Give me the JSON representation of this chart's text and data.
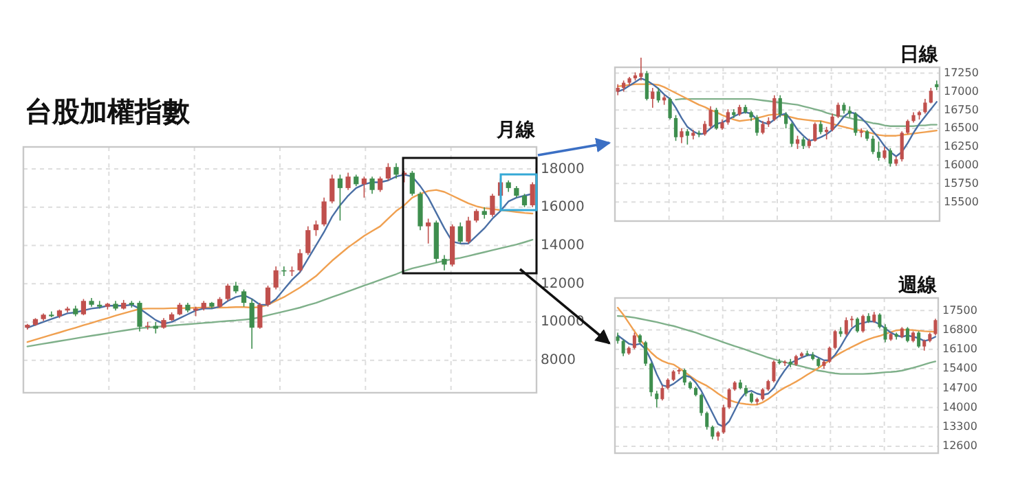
{
  "chart_data": [
    {
      "type": "candlestick",
      "title": "台股加權指數",
      "subtitle": "月線",
      "grid": true,
      "ylim": [
        6300,
        19150
      ],
      "yticks": [
        8000,
        10000,
        12000,
        14000,
        16000,
        18000
      ],
      "categories": [
        null,
        null,
        null,
        null,
        null,
        null,
        null,
        null,
        null,
        null,
        null,
        null,
        null,
        null,
        null,
        null,
        null,
        null,
        null,
        null,
        null,
        null,
        null,
        null,
        null,
        null,
        null,
        null,
        null,
        null,
        null,
        null,
        null,
        null,
        null,
        null,
        null,
        null,
        null,
        null,
        null,
        null,
        null,
        null,
        null,
        null,
        null,
        null,
        null,
        null,
        null,
        null,
        null,
        null,
        null,
        null,
        null,
        null,
        null,
        null,
        null,
        null,
        null,
        null
      ],
      "series": [
        {
          "type": "line",
          "color": "#7fb08a",
          "values": [
            8720,
            8790,
            8860,
            8930,
            9000,
            9070,
            9140,
            9210,
            9280,
            9340,
            9410,
            9480,
            9550,
            9610,
            9680,
            9710,
            9740,
            9780,
            9810,
            9850,
            9880,
            9910,
            9950,
            9980,
            10020,
            10050,
            10080,
            10120,
            10160,
            10250,
            10350,
            10450,
            10550,
            10650,
            10750,
            10880,
            11000,
            11150,
            11300,
            11450,
            11600,
            11750,
            11900,
            12050,
            12200,
            12350,
            12500,
            12670,
            12800,
            12900,
            13000,
            13100,
            13200,
            13280,
            13350,
            13450,
            13550,
            13650,
            13750,
            13850,
            13950,
            14050,
            14170,
            14300
          ]
        },
        {
          "type": "line",
          "color": "#f0a050",
          "values": [
            8950,
            9080,
            9200,
            9330,
            9450,
            9580,
            9700,
            9830,
            9950,
            10080,
            10200,
            10330,
            10450,
            10570,
            10680,
            10700,
            10700,
            10700,
            10720,
            10720,
            10730,
            10740,
            10750,
            10750,
            10750,
            10760,
            10780,
            10780,
            10750,
            10780,
            10900,
            11100,
            11300,
            11550,
            11800,
            12100,
            12400,
            12800,
            13200,
            13550,
            13900,
            14200,
            14500,
            14750,
            15000,
            15400,
            15800,
            16100,
            16500,
            16700,
            16850,
            16900,
            16800,
            16600,
            16400,
            16200,
            16050,
            15950,
            15900,
            15850,
            15800,
            15750,
            15700,
            15670
          ]
        },
        {
          "type": "line",
          "color": "#4a6fa5",
          "values": [
            9700,
            9850,
            10000,
            10150,
            10300,
            10450,
            10500,
            10600,
            10700,
            10750,
            10850,
            10850,
            10850,
            10900,
            10700,
            10400,
            10100,
            9900,
            10000,
            10200,
            10400,
            10600,
            10700,
            10700,
            10800,
            11100,
            11300,
            11400,
            11200,
            10900,
            10900,
            11200,
            11700,
            12200,
            12600,
            13300,
            14000,
            14700,
            15500,
            16100,
            16600,
            17000,
            17200,
            17300,
            17300,
            17400,
            17600,
            17700,
            17600,
            17100,
            16500,
            15700,
            14900,
            14200,
            14100,
            14100,
            14500,
            14900,
            15400,
            15800,
            16300,
            16500,
            16600,
            16700
          ]
        },
        {
          "type": "candlestick",
          "ohlc": [
            [
              9700,
              9900,
              9600,
              9850
            ],
            [
              9850,
              10200,
              9800,
              10150
            ],
            [
              10150,
              10450,
              10050,
              10380
            ],
            [
              10380,
              10550,
              10250,
              10300
            ],
            [
              10300,
              10650,
              10200,
              10600
            ],
            [
              10600,
              10800,
              10500,
              10700
            ],
            [
              10700,
              10850,
              10300,
              10400
            ],
            [
              10400,
              11200,
              10350,
              11100
            ],
            [
              11100,
              11250,
              10800,
              10900
            ],
            [
              10900,
              11100,
              10700,
              10800
            ],
            [
              10800,
              11000,
              10650,
              10950
            ],
            [
              10950,
              11100,
              10600,
              10700
            ],
            [
              10700,
              11150,
              10650,
              11000
            ],
            [
              11000,
              11100,
              10750,
              10900
            ],
            [
              11000,
              11100,
              9500,
              9750
            ],
            [
              9750,
              10000,
              9600,
              9800
            ],
            [
              9800,
              10000,
              9400,
              9650
            ],
            [
              9700,
              10200,
              9650,
              10100
            ],
            [
              10100,
              10500,
              10050,
              10400
            ],
            [
              10400,
              11000,
              10350,
              10900
            ],
            [
              10900,
              11000,
              10500,
              10600
            ],
            [
              10600,
              10800,
              10300,
              10700
            ],
            [
              10700,
              11100,
              10600,
              11000
            ],
            [
              11000,
              11050,
              10700,
              10800
            ],
            [
              10800,
              11300,
              10750,
              11200
            ],
            [
              11200,
              12000,
              11100,
              11900
            ],
            [
              11900,
              12100,
              11500,
              11600
            ],
            [
              11600,
              11700,
              10800,
              11000
            ],
            [
              11000,
              11200,
              8600,
              9700
            ],
            [
              9700,
              11000,
              9650,
              10900
            ],
            [
              10900,
              11900,
              10800,
              11800
            ],
            [
              11800,
              12900,
              11700,
              12700
            ],
            [
              12700,
              12900,
              12400,
              12650
            ],
            [
              12650,
              12900,
              12400,
              12700
            ],
            [
              12700,
              13800,
              12600,
              13600
            ],
            [
              13600,
              15000,
              13500,
              14800
            ],
            [
              14800,
              15300,
              14500,
              15100
            ],
            [
              15100,
              16500,
              15000,
              16300
            ],
            [
              16300,
              17700,
              16200,
              17500
            ],
            [
              17500,
              17700,
              15300,
              17000
            ],
            [
              17000,
              17800,
              16900,
              17600
            ],
            [
              17600,
              17700,
              17100,
              17200
            ],
            [
              17200,
              17600,
              16500,
              17500
            ],
            [
              17500,
              17600,
              16700,
              16900
            ],
            [
              16900,
              17600,
              16800,
              17500
            ],
            [
              17500,
              18300,
              17400,
              18100
            ],
            [
              18100,
              18300,
              17500,
              17700
            ],
            [
              17700,
              17900,
              17300,
              17800
            ],
            [
              17800,
              17900,
              16600,
              16700
            ],
            [
              16700,
              16800,
              14800,
              15000
            ],
            [
              15000,
              15400,
              14100,
              15200
            ],
            [
              15200,
              15300,
              13100,
              13300
            ],
            [
              13300,
              13500,
              12700,
              13000
            ],
            [
              13000,
              15100,
              12900,
              15000
            ],
            [
              15000,
              15200,
              14100,
              14200
            ],
            [
              14200,
              15500,
              14100,
              15300
            ],
            [
              15300,
              15900,
              15200,
              15800
            ],
            [
              15800,
              16000,
              15400,
              15600
            ],
            [
              15600,
              16700,
              15500,
              16600
            ],
            [
              16600,
              17500,
              16500,
              17300
            ],
            [
              17300,
              17400,
              16800,
              17000
            ],
            [
              17000,
              17100,
              16500,
              16600
            ],
            [
              16600,
              16700,
              16000,
              16100
            ],
            [
              16100,
              17300,
              16000,
              17200
            ]
          ],
          "colors": [
            "#c0504d",
            "#c0504d",
            "#c0504d",
            "#3e8e4e",
            "#c0504d",
            "#c0504d",
            "#3e8e4e",
            "#c0504d",
            "#3e8e4e",
            "#3e8e4e",
            "#c0504d",
            "#3e8e4e",
            "#c0504d",
            "#3e8e4e",
            "#3e8e4e",
            "#c0504d",
            "#3e8e4e",
            "#c0504d",
            "#c0504d",
            "#c0504d",
            "#3e8e4e",
            "#c0504d",
            "#c0504d",
            "#3e8e4e",
            "#c0504d",
            "#c0504d",
            "#3e8e4e",
            "#3e8e4e",
            "#3e8e4e",
            "#c0504d",
            "#c0504d",
            "#c0504d",
            "#3e8e4e",
            "#c0504d",
            "#c0504d",
            "#c0504d",
            "#c0504d",
            "#c0504d",
            "#c0504d",
            "#3e8e4e",
            "#c0504d",
            "#3e8e4e",
            "#c0504d",
            "#3e8e4e",
            "#c0504d",
            "#c0504d",
            "#3e8e4e",
            "#c0504d",
            "#3e8e4e",
            "#3e8e4e",
            "#c0504d",
            "#3e8e4e",
            "#3e8e4e",
            "#c0504d",
            "#3e8e4e",
            "#c0504d",
            "#c0504d",
            "#3e8e4e",
            "#c0504d",
            "#c0504d",
            "#3e8e4e",
            "#3e8e4e",
            "#3e8e4e",
            "#c0504d"
          ]
        }
      ]
    },
    {
      "type": "candlestick",
      "title": "日線",
      "grid": true,
      "ylim": [
        15240,
        17330
      ],
      "yticks": [
        15500,
        15750,
        16000,
        16250,
        16500,
        16750,
        17000,
        17250
      ],
      "categories": [
        null,
        null,
        null,
        null,
        null,
        null,
        null,
        null,
        null,
        null,
        null,
        null,
        null,
        null,
        null,
        null,
        null,
        null,
        null,
        null,
        null,
        null,
        null,
        null,
        null,
        null,
        null,
        null,
        null,
        null,
        null,
        null,
        null,
        null,
        null,
        null,
        null,
        null,
        null,
        null,
        null,
        null,
        null,
        null,
        null,
        null,
        null,
        null,
        null,
        null,
        null,
        null,
        null,
        null,
        null,
        null
      ],
      "series": [
        {
          "type": "line",
          "color": "#7fb08a",
          "values": [
            null,
            null,
            null,
            null,
            null,
            null,
            null,
            null,
            null,
            null,
            16890,
            16900,
            16900,
            16900,
            16900,
            16900,
            16900,
            16900,
            16900,
            16900,
            16900,
            16900,
            16900,
            16900,
            16890,
            16880,
            16870,
            16860,
            16850,
            16840,
            16830,
            16820,
            16800,
            16780,
            16760,
            16740,
            16710,
            16690,
            16670,
            16660,
            16640,
            16620,
            16610,
            16590,
            16570,
            16560,
            16540,
            16530,
            16530,
            16530,
            16530,
            16530,
            16540,
            16540,
            16550,
            16550
          ]
        },
        {
          "type": "line",
          "color": "#f0a050",
          "values": [
            17070,
            17080,
            17090,
            17100,
            17100,
            17100,
            17100,
            17090,
            17060,
            17020,
            16980,
            16940,
            16900,
            16860,
            16820,
            16790,
            16750,
            16720,
            16680,
            16650,
            16620,
            16600,
            16610,
            16620,
            16640,
            16660,
            16680,
            16690,
            16690,
            16670,
            16650,
            16630,
            16620,
            16610,
            16600,
            16600,
            16580,
            16560,
            16540,
            16520,
            16500,
            16480,
            16470,
            16450,
            16430,
            16410,
            16400,
            16400,
            16400,
            16410,
            16420,
            16430,
            16440,
            16450,
            16460,
            16470
          ]
        },
        {
          "type": "line",
          "color": "#4a6fa5",
          "values": [
            17000,
            17030,
            17080,
            17130,
            17180,
            17150,
            17100,
            17040,
            16960,
            16900,
            16780,
            16640,
            16520,
            16460,
            16420,
            16430,
            16500,
            16560,
            16580,
            16620,
            16660,
            16700,
            16720,
            16700,
            16620,
            16580,
            16560,
            16620,
            16680,
            16700,
            16600,
            16480,
            16400,
            16330,
            16350,
            16380,
            16420,
            16480,
            16560,
            16660,
            16720,
            16700,
            16640,
            16560,
            16460,
            16370,
            16260,
            16180,
            16120,
            16180,
            16300,
            16440,
            16560,
            16660,
            16760,
            16860
          ]
        },
        {
          "type": "candlestick",
          "ohlc": [
            [
              17000,
              17100,
              16950,
              17050
            ],
            [
              17050,
              17150,
              17000,
              17120
            ],
            [
              17120,
              17200,
              17080,
              17180
            ],
            [
              17180,
              17260,
              17150,
              17220
            ],
            [
              17200,
              17460,
              17150,
              17250
            ],
            [
              17250,
              17280,
              16880,
              16900
            ],
            [
              16900,
              17050,
              16780,
              17000
            ],
            [
              17000,
              17050,
              16850,
              16880
            ],
            [
              16880,
              16950,
              16820,
              16920
            ],
            [
              16900,
              16920,
              16620,
              16640
            ],
            [
              16640,
              16680,
              16330,
              16380
            ],
            [
              16380,
              16500,
              16300,
              16460
            ],
            [
              16460,
              16490,
              16280,
              16400
            ],
            [
              16400,
              16480,
              16350,
              16440
            ],
            [
              16440,
              16470,
              16380,
              16420
            ],
            [
              16420,
              16600,
              16400,
              16560
            ],
            [
              16530,
              16800,
              16500,
              16750
            ],
            [
              16750,
              16780,
              16480,
              16500
            ],
            [
              16500,
              16620,
              16480,
              16580
            ],
            [
              16580,
              16760,
              16550,
              16720
            ],
            [
              16720,
              16760,
              16640,
              16680
            ],
            [
              16690,
              16820,
              16670,
              16790
            ],
            [
              16790,
              16820,
              16700,
              16720
            ],
            [
              16720,
              16740,
              16600,
              16650
            ],
            [
              16650,
              16680,
              16400,
              16440
            ],
            [
              16440,
              16600,
              16420,
              16560
            ],
            [
              16560,
              16650,
              16520,
              16600
            ],
            [
              16620,
              16950,
              16600,
              16910
            ],
            [
              16910,
              16950,
              16650,
              16690
            ],
            [
              16690,
              16720,
              16500,
              16560
            ],
            [
              16560,
              16580,
              16250,
              16290
            ],
            [
              16290,
              16400,
              16220,
              16350
            ],
            [
              16350,
              16380,
              16220,
              16260
            ],
            [
              16260,
              16360,
              16230,
              16330
            ],
            [
              16330,
              16580,
              16320,
              16560
            ],
            [
              16560,
              16600,
              16420,
              16450
            ],
            [
              16450,
              16520,
              16350,
              16480
            ],
            [
              16480,
              16700,
              16460,
              16660
            ],
            [
              16660,
              16850,
              16640,
              16820
            ],
            [
              16820,
              16850,
              16700,
              16740
            ],
            [
              16740,
              16800,
              16650,
              16700
            ],
            [
              16700,
              16720,
              16400,
              16440
            ],
            [
              16440,
              16500,
              16380,
              16460
            ],
            [
              16460,
              16480,
              16330,
              16360
            ],
            [
              16360,
              16400,
              16150,
              16180
            ],
            [
              16180,
              16320,
              16060,
              16100
            ],
            [
              16100,
              16250,
              16080,
              16200
            ],
            [
              16200,
              16230,
              15980,
              16020
            ],
            [
              16020,
              16120,
              15990,
              16080
            ],
            [
              16080,
              16460,
              16050,
              16440
            ],
            [
              16440,
              16620,
              16420,
              16600
            ],
            [
              16600,
              16720,
              16580,
              16680
            ],
            [
              16680,
              16740,
              16620,
              16720
            ],
            [
              16720,
              16900,
              16700,
              16850
            ],
            [
              16850,
              17050,
              16840,
              17010
            ],
            [
              17100,
              17150,
              17020,
              17060
            ]
          ],
          "colors": [
            "#c0504d",
            "#c0504d",
            "#c0504d",
            "#c0504d",
            "#c0504d",
            "#3e8e4e",
            "#c0504d",
            "#3e8e4e",
            "#c0504d",
            "#3e8e4e",
            "#3e8e4e",
            "#c0504d",
            "#3e8e4e",
            "#c0504d",
            "#3e8e4e",
            "#c0504d",
            "#c0504d",
            "#3e8e4e",
            "#c0504d",
            "#c0504d",
            "#3e8e4e",
            "#c0504d",
            "#3e8e4e",
            "#3e8e4e",
            "#3e8e4e",
            "#c0504d",
            "#c0504d",
            "#c0504d",
            "#3e8e4e",
            "#3e8e4e",
            "#3e8e4e",
            "#c0504d",
            "#3e8e4e",
            "#c0504d",
            "#c0504d",
            "#3e8e4e",
            "#c0504d",
            "#c0504d",
            "#c0504d",
            "#3e8e4e",
            "#3e8e4e",
            "#3e8e4e",
            "#c0504d",
            "#3e8e4e",
            "#3e8e4e",
            "#3e8e4e",
            "#c0504d",
            "#3e8e4e",
            "#c0504d",
            "#c0504d",
            "#c0504d",
            "#c0504d",
            "#c0504d",
            "#c0504d",
            "#c0504d",
            "#3e8e4e"
          ]
        }
      ]
    },
    {
      "type": "candlestick",
      "title": "週線",
      "grid": true,
      "ylim": [
        12350,
        17950
      ],
      "yticks": [
        12600,
        13300,
        14000,
        14700,
        15400,
        16100,
        16800,
        17500
      ],
      "categories": [
        null,
        null,
        null,
        null,
        null,
        null,
        null,
        null,
        null,
        null,
        null,
        null,
        null,
        null,
        null,
        null,
        null,
        null,
        null,
        null,
        null,
        null,
        null,
        null,
        null,
        null,
        null,
        null,
        null,
        null,
        null,
        null,
        null,
        null,
        null,
        null,
        null,
        null,
        null,
        null,
        null,
        null,
        null,
        null,
        null,
        null,
        null,
        null,
        null,
        null,
        null,
        null,
        null,
        null,
        null,
        null,
        null,
        null
      ],
      "series": [
        {
          "type": "line",
          "color": "#7fb08a",
          "values": [
            17300,
            17290,
            17270,
            17240,
            17200,
            17160,
            17120,
            17080,
            17030,
            16980,
            16940,
            16880,
            16820,
            16760,
            16700,
            16630,
            16560,
            16490,
            16420,
            16350,
            16280,
            16210,
            16150,
            16080,
            16010,
            15940,
            15870,
            15800,
            15740,
            15680,
            15630,
            15580,
            15530,
            15480,
            15430,
            15380,
            15330,
            15300,
            15260,
            15230,
            15210,
            15210,
            15210,
            15210,
            15210,
            15220,
            15230,
            15250,
            15270,
            15280,
            15300,
            15330,
            15380,
            15430,
            15490,
            15550,
            15610,
            15660
          ]
        },
        {
          "type": "line",
          "color": "#f0a050",
          "values": [
            17600,
            17350,
            17050,
            16750,
            16450,
            16200,
            15980,
            15800,
            15680,
            15600,
            15550,
            15420,
            15280,
            15130,
            14990,
            14880,
            14780,
            14650,
            14500,
            14370,
            14270,
            14200,
            14150,
            14120,
            14100,
            14100,
            14180,
            14300,
            14450,
            14600,
            14720,
            14820,
            14930,
            15050,
            15180,
            15300,
            15420,
            15560,
            15700,
            15850,
            15970,
            16080,
            16180,
            16280,
            16380,
            16460,
            16530,
            16580,
            16650,
            16720,
            16780,
            16800,
            16800,
            16790,
            16770,
            16750,
            16740,
            16730
          ]
        },
        {
          "type": "line",
          "color": "#4a6fa5",
          "values": [
            16600,
            16450,
            16300,
            16250,
            16300,
            16100,
            15700,
            15200,
            14800,
            14750,
            14850,
            15000,
            15150,
            15100,
            14900,
            14600,
            14200,
            13800,
            13400,
            13300,
            13500,
            13900,
            14300,
            14550,
            14600,
            14500,
            14450,
            14500,
            14700,
            15050,
            15350,
            15600,
            15700,
            15800,
            15880,
            15900,
            15800,
            15700,
            15700,
            15900,
            16200,
            16550,
            16850,
            17000,
            17050,
            17100,
            17100,
            17000,
            16850,
            16700,
            16600,
            16550,
            16600,
            16550,
            16500,
            16400,
            16450,
            16550
          ]
        },
        {
          "type": "candlestick",
          "ohlc": [
            [
              16560,
              16700,
              16300,
              16400
            ],
            [
              16400,
              16450,
              15850,
              15950
            ],
            [
              15950,
              16200,
              15900,
              16150
            ],
            [
              16150,
              16700,
              16100,
              16600
            ],
            [
              16600,
              16650,
              16300,
              16350
            ],
            [
              16350,
              16400,
              15500,
              15580
            ],
            [
              15580,
              15620,
              14400,
              14550
            ],
            [
              14500,
              14600,
              14000,
              14300
            ],
            [
              14300,
              14800,
              14250,
              14700
            ],
            [
              14700,
              15050,
              14650,
              15000
            ],
            [
              15000,
              15350,
              14950,
              15300
            ],
            [
              15300,
              15400,
              15200,
              15350
            ],
            [
              15350,
              15400,
              14800,
              14900
            ],
            [
              14900,
              14950,
              14650,
              14700
            ],
            [
              14700,
              14750,
              14400,
              14450
            ],
            [
              14450,
              14500,
              13700,
              13800
            ],
            [
              13800,
              13850,
              13200,
              13300
            ],
            [
              13300,
              13350,
              12850,
              12950
            ],
            [
              12950,
              13150,
              12800,
              13100
            ],
            [
              13100,
              14100,
              13050,
              14000
            ],
            [
              14000,
              14700,
              13950,
              14650
            ],
            [
              14650,
              14950,
              14600,
              14900
            ],
            [
              14900,
              15000,
              14650,
              14700
            ],
            [
              14700,
              14800,
              14400,
              14500
            ],
            [
              14500,
              14550,
              14150,
              14200
            ],
            [
              14200,
              14350,
              14100,
              14300
            ],
            [
              14300,
              14700,
              14250,
              14650
            ],
            [
              14650,
              15000,
              14600,
              14950
            ],
            [
              14950,
              15700,
              14900,
              15650
            ],
            [
              15650,
              15750,
              15550,
              15600
            ],
            [
              15600,
              15700,
              15500,
              15650
            ],
            [
              15650,
              15750,
              15450,
              15550
            ],
            [
              15550,
              15900,
              15500,
              15850
            ],
            [
              15850,
              16000,
              15800,
              15950
            ],
            [
              15950,
              16050,
              15850,
              15900
            ],
            [
              15900,
              16000,
              15700,
              15750
            ],
            [
              15750,
              15800,
              15450,
              15500
            ],
            [
              15500,
              15700,
              15400,
              15650
            ],
            [
              15650,
              16200,
              15600,
              16150
            ],
            [
              16150,
              16800,
              16100,
              16750
            ],
            [
              16750,
              16900,
              16550,
              16650
            ],
            [
              16650,
              17250,
              16600,
              17150
            ],
            [
              17150,
              17300,
              16900,
              17200
            ],
            [
              17200,
              17250,
              16700,
              16750
            ],
            [
              16750,
              17350,
              16700,
              17300
            ],
            [
              17300,
              17400,
              17050,
              17100
            ],
            [
              17100,
              17450,
              17050,
              17350
            ],
            [
              17350,
              17400,
              16850,
              16900
            ],
            [
              16900,
              17000,
              16350,
              16450
            ],
            [
              16450,
              16700,
              16400,
              16650
            ],
            [
              16650,
              16700,
              16450,
              16550
            ],
            [
              16550,
              16900,
              16500,
              16850
            ],
            [
              16850,
              16900,
              16350,
              16400
            ],
            [
              16400,
              16750,
              16350,
              16700
            ],
            [
              16700,
              16750,
              16150,
              16200
            ],
            [
              16200,
              16450,
              16050,
              16400
            ],
            [
              16400,
              16700,
              16350,
              16650
            ],
            [
              16650,
              17200,
              16600,
              17150
            ]
          ],
          "colors": [
            "#3e8e4e",
            "#3e8e4e",
            "#c0504d",
            "#c0504d",
            "#3e8e4e",
            "#3e8e4e",
            "#3e8e4e",
            "#3e8e4e",
            "#c0504d",
            "#c0504d",
            "#c0504d",
            "#c0504d",
            "#3e8e4e",
            "#3e8e4e",
            "#3e8e4e",
            "#3e8e4e",
            "#3e8e4e",
            "#3e8e4e",
            "#c0504d",
            "#c0504d",
            "#c0504d",
            "#c0504d",
            "#3e8e4e",
            "#3e8e4e",
            "#3e8e4e",
            "#c0504d",
            "#c0504d",
            "#c0504d",
            "#c0504d",
            "#3e8e4e",
            "#c0504d",
            "#3e8e4e",
            "#c0504d",
            "#c0504d",
            "#3e8e4e",
            "#3e8e4e",
            "#3e8e4e",
            "#c0504d",
            "#c0504d",
            "#c0504d",
            "#3e8e4e",
            "#c0504d",
            "#c0504d",
            "#3e8e4e",
            "#c0504d",
            "#3e8e4e",
            "#c0504d",
            "#3e8e4e",
            "#3e8e4e",
            "#c0504d",
            "#3e8e4e",
            "#c0504d",
            "#3e8e4e",
            "#c0504d",
            "#3e8e4e",
            "#c0504d",
            "#c0504d",
            "#c0504d"
          ]
        }
      ]
    }
  ]
}
